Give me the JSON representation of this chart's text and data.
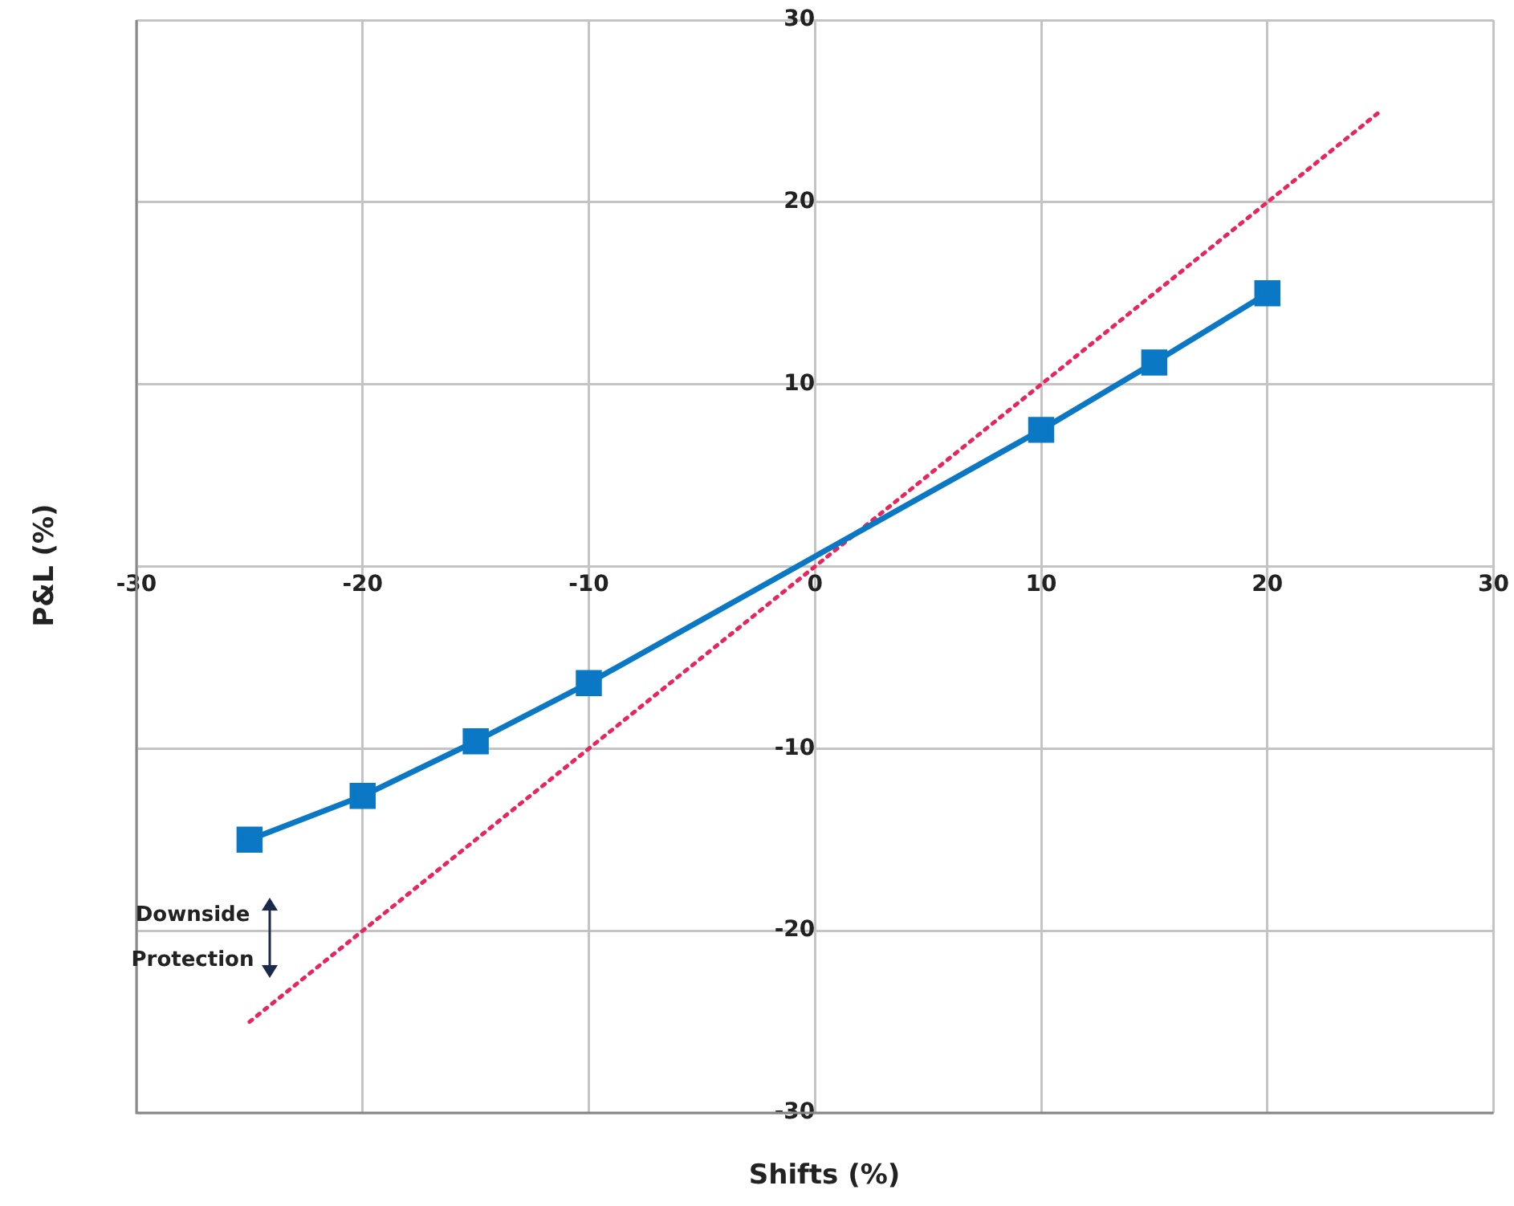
{
  "chart_data": {
    "type": "line",
    "xlabel": "Shifts (%)",
    "ylabel": "P&L (%)",
    "xlim": [
      -30,
      30
    ],
    "ylim": [
      -30,
      30
    ],
    "xticks": [
      -30,
      -20,
      -10,
      0,
      10,
      20,
      30
    ],
    "yticks": [
      -30,
      -20,
      -10,
      {
        "value": 0,
        "label": null
      },
      10,
      20,
      30
    ],
    "grid": true,
    "legend": false,
    "series": [
      {
        "color": "#0a78c4",
        "x": [
          -25,
          -20,
          -15,
          -10,
          10,
          15,
          20
        ],
        "values": [
          -15,
          -12.6,
          -9.6,
          -6.4,
          7.5,
          11.2,
          15
        ],
        "marker": "square",
        "line_style": "solid"
      },
      {
        "color": "#e8265e",
        "x": [
          -25,
          25
        ],
        "values": [
          -25,
          25
        ],
        "marker": "none",
        "line_style": "dotted"
      }
    ],
    "annotations": [
      "Downside Protection"
    ]
  }
}
